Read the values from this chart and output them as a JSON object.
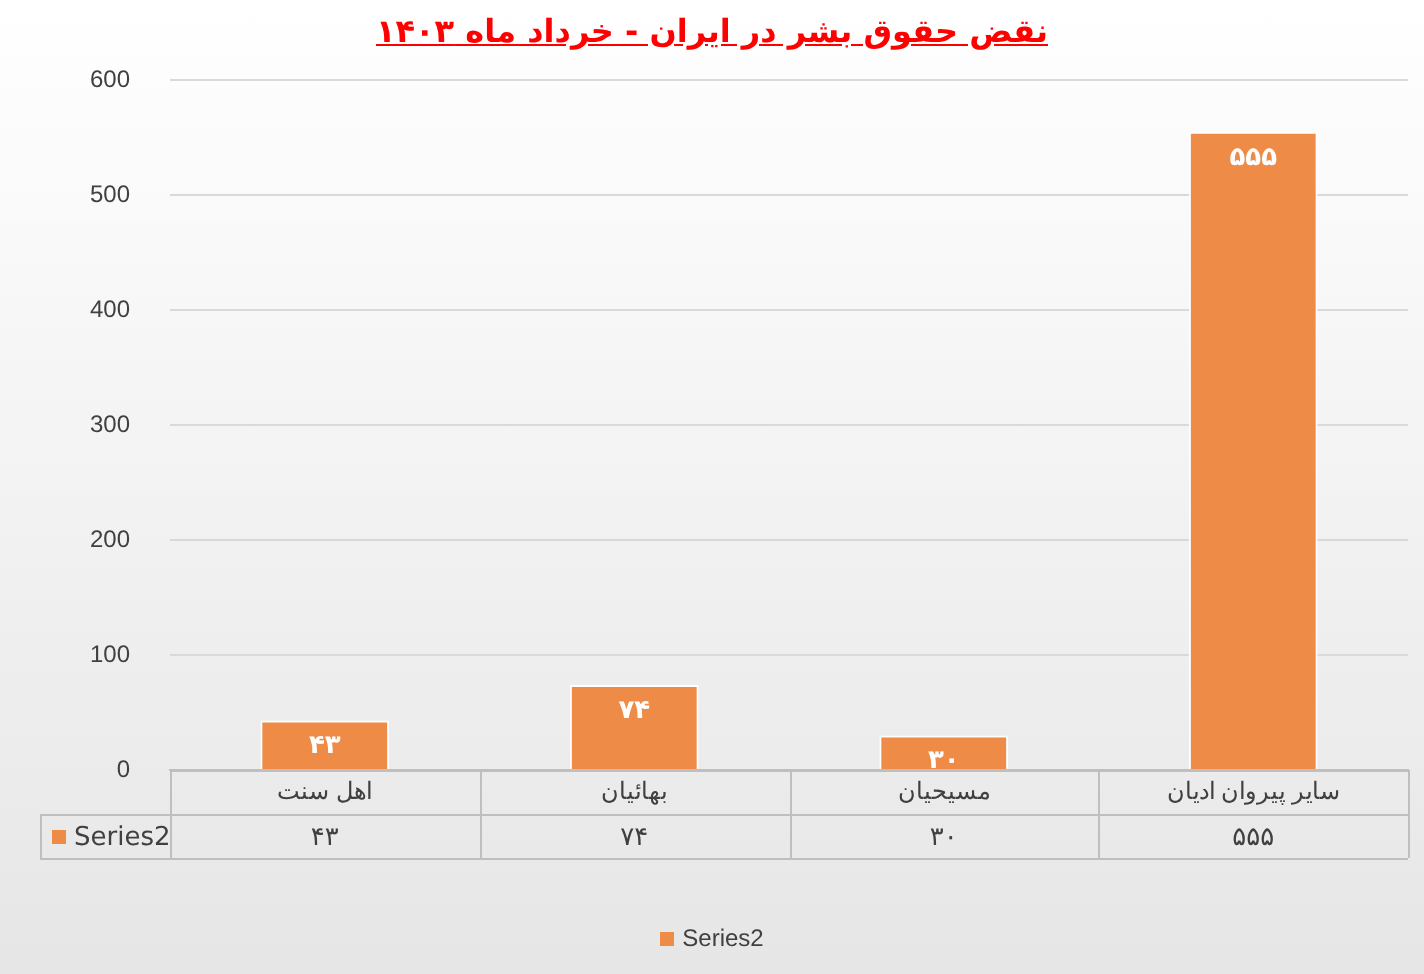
{
  "chart_data": {
    "type": "bar",
    "title": "نقض حقوق بشر در ایران - خرداد ماه ۱۴۰۳",
    "categories": [
      "اهل سنت",
      "بهائیان",
      "مسیحیان",
      "سایر پیروان ادیان"
    ],
    "series": [
      {
        "name": "Series2",
        "color": "#ed8b47",
        "values": [
          43,
          74,
          30,
          555
        ],
        "value_labels": [
          "۴۳",
          "۷۴",
          "۳۰",
          "۵۵۵"
        ]
      }
    ],
    "ylim": [
      0,
      600
    ],
    "yticks": [
      0,
      100,
      200,
      300,
      400,
      500,
      600
    ],
    "grid": "y",
    "legend": "bottom"
  }
}
